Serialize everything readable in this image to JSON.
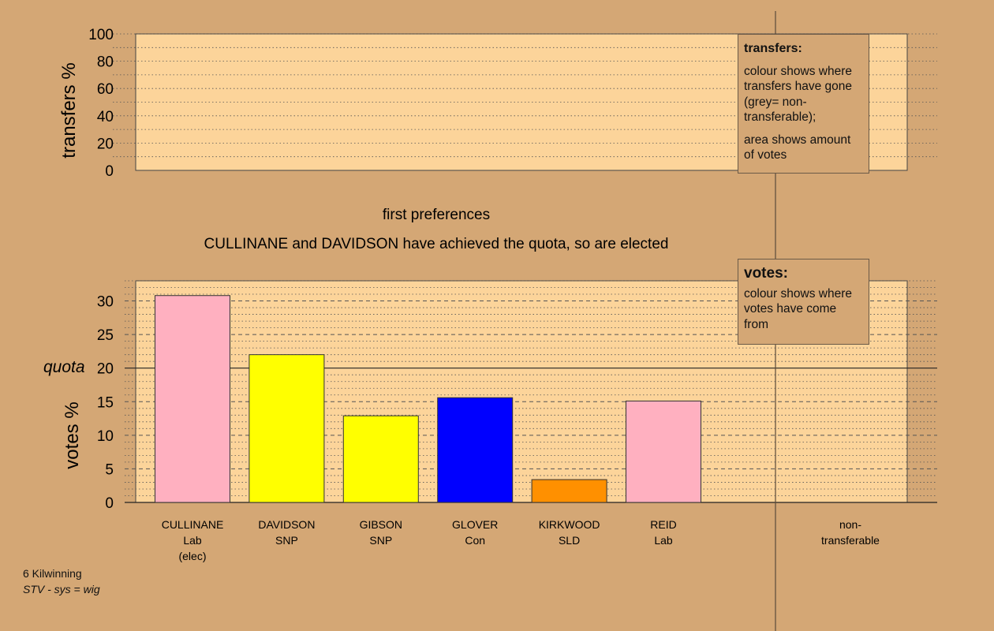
{
  "chart_data": [
    {
      "type": "bar",
      "name": "transfers panel",
      "ylabel": "transfers %",
      "ylim": [
        0,
        100
      ],
      "yticks": [
        0,
        20,
        40,
        60,
        80,
        100
      ],
      "values": [],
      "grid": true
    },
    {
      "type": "bar",
      "ylabel": "votes %",
      "ylim": [
        0,
        33
      ],
      "yticks": [
        0,
        5,
        10,
        15,
        20,
        25,
        30
      ],
      "quota": 20,
      "quota_label": "quota",
      "categories": [
        {
          "name": "CULLINANE",
          "party": "Lab",
          "status": "(elec)"
        },
        {
          "name": "DAVIDSON",
          "party": "SNP",
          "status": ""
        },
        {
          "name": "GIBSON",
          "party": "SNP",
          "status": ""
        },
        {
          "name": "GLOVER",
          "party": "Con",
          "status": ""
        },
        {
          "name": "KIRKWOOD",
          "party": "SLD",
          "status": ""
        },
        {
          "name": "REID",
          "party": "Lab",
          "status": ""
        }
      ],
      "values": [
        30.8,
        22.0,
        12.9,
        15.6,
        3.4,
        15.1
      ],
      "colors": [
        "#ffb0c0",
        "#ffff00",
        "#ffff00",
        "#0000ff",
        "#ff9000",
        "#ffb0c0"
      ],
      "extra_category": {
        "line1": "non-",
        "line2": "transferable"
      },
      "grid": true
    }
  ],
  "headings": {
    "stage": "first preferences",
    "message": "CULLINANE and DAVIDSON have achieved the quota, so are elected"
  },
  "transfers_legend": {
    "title": "transfers:",
    "text1": "colour shows where transfers have gone (grey= non-transferable);",
    "text2": "area shows amount of votes"
  },
  "votes_legend": {
    "title": "votes:",
    "text1": "colour shows where votes have come from"
  },
  "footnote": {
    "area": "6 Kilwinning",
    "system": "STV - sys = wig"
  },
  "colors": {
    "background": "#d4a775",
    "panel": "#fcd49a"
  }
}
